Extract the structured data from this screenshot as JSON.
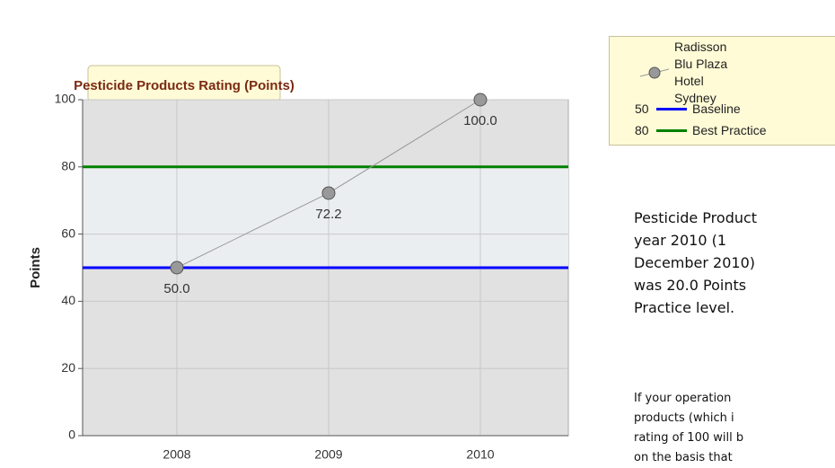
{
  "chart_data": {
    "type": "line",
    "title": "Pesticide Products Rating (Points)",
    "y_label": "Points",
    "categories": [
      "2008",
      "2009",
      "2010"
    ],
    "series": [
      {
        "name": "Radisson Blu Plaza Hotel Sydney",
        "color": "#999999",
        "values": [
          50,
          72.2,
          100
        ],
        "value_labels": [
          "50.0",
          "72.2",
          "100.0"
        ]
      }
    ],
    "reference_lines": [
      {
        "name": "Baseline",
        "value": 50,
        "color": "#0000ff"
      },
      {
        "name": "Best Practice",
        "value": 80,
        "color": "#008000"
      }
    ],
    "ylim": [
      0,
      100
    ],
    "yticks": [
      0,
      20,
      40,
      60,
      80,
      100
    ],
    "grid": true
  },
  "text": {
    "paragraph_1": [
      "Pesticide Product",
      "year 2010 (1",
      "December 2010)",
      "was 20.0 Points",
      "Practice level."
    ],
    "paragraph_2": [
      "If your operation",
      "products (which i",
      "rating of 100 will b",
      "on the basis that"
    ]
  }
}
